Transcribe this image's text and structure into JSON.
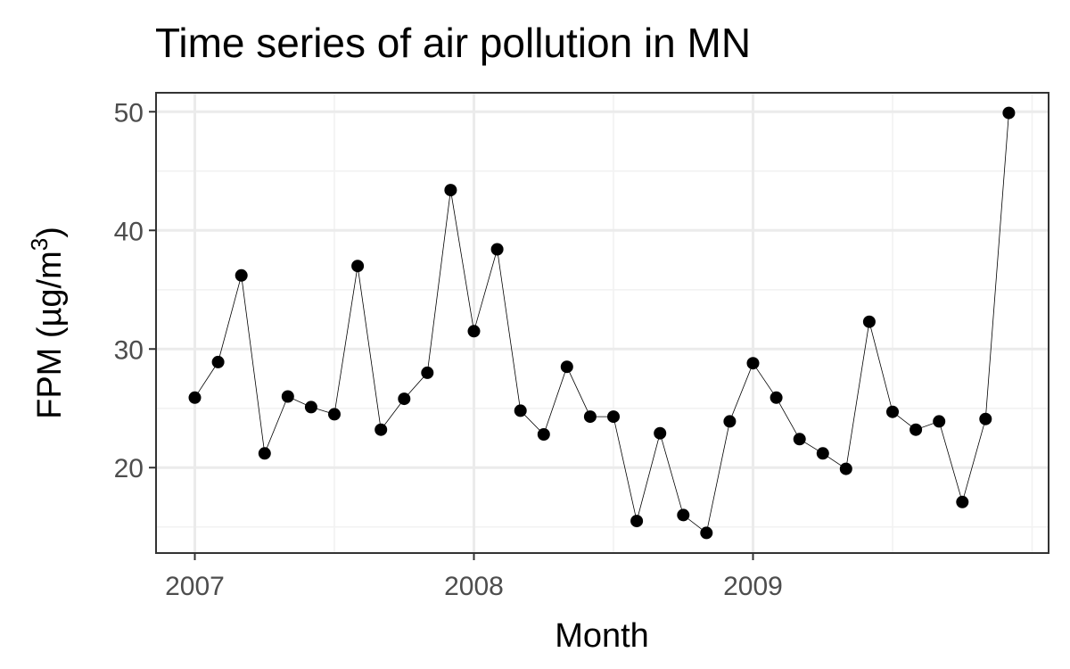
{
  "chart_data": {
    "type": "line",
    "title": "Time series of air pollution in MN",
    "xlabel": "Month",
    "ylabel_main": "FPM (µg/m",
    "ylabel_sup": "3",
    "ylabel_close": ")",
    "x_ticks": [
      "2007",
      "2008",
      "2009"
    ],
    "y_ticks": [
      20,
      30,
      40,
      50
    ],
    "ylim": [
      12.8,
      51.6
    ],
    "grid": true,
    "markers": true,
    "series": [
      {
        "x": [
          "2007-01",
          "2007-02",
          "2007-03",
          "2007-04",
          "2007-05",
          "2007-06",
          "2007-07",
          "2007-08",
          "2007-09",
          "2007-10",
          "2007-11",
          "2007-12",
          "2008-01",
          "2008-02",
          "2008-03",
          "2008-04",
          "2008-05",
          "2008-06",
          "2008-07",
          "2008-08",
          "2008-09",
          "2008-10",
          "2008-11",
          "2008-12",
          "2009-01",
          "2009-02",
          "2009-03",
          "2009-04",
          "2009-05",
          "2009-06",
          "2009-07",
          "2009-08",
          "2009-09",
          "2009-10",
          "2009-11",
          "2009-12"
        ],
        "values": [
          25.9,
          28.9,
          36.2,
          21.2,
          26.0,
          25.1,
          24.5,
          37.0,
          23.2,
          25.8,
          28.0,
          43.4,
          31.5,
          38.4,
          24.8,
          22.8,
          28.5,
          24.3,
          24.3,
          15.5,
          22.9,
          16.0,
          14.5,
          23.9,
          28.8,
          25.9,
          22.4,
          21.2,
          19.9,
          32.3,
          24.7,
          23.2,
          23.9,
          17.1,
          24.1,
          49.9
        ]
      }
    ]
  }
}
